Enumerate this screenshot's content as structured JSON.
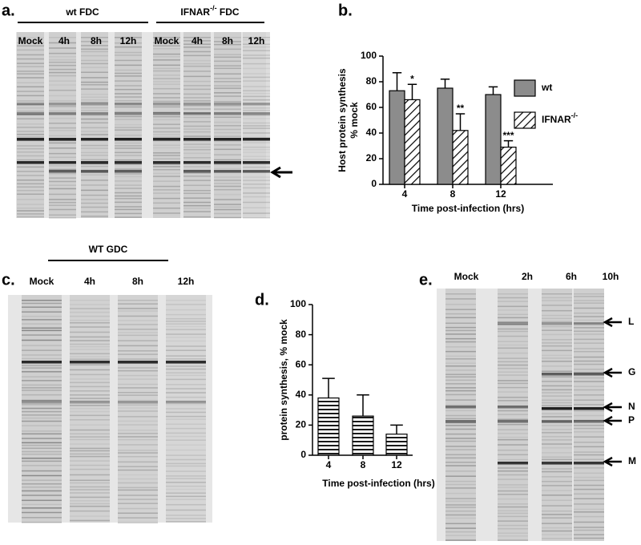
{
  "panel_labels": [
    "a.",
    "b.",
    "c.",
    "d.",
    "e."
  ],
  "gel_a": {
    "groups": [
      {
        "text": "wt FDC"
      },
      {
        "text": "IFNAR",
        "sup": "-/-",
        "suffix": " FDC"
      }
    ],
    "lanes": [
      "Mock",
      "4h",
      "8h",
      "12h",
      "Mock",
      "4h",
      "8h",
      "12h"
    ]
  },
  "gel_c": {
    "group": "WT GDC",
    "lanes": [
      "Mock",
      "4h",
      "8h",
      "12h"
    ]
  },
  "gel_e": {
    "lanes": [
      "Mock",
      "2h",
      "6h",
      "10h"
    ],
    "bands": [
      "L",
      "G",
      "N",
      "P",
      "M"
    ]
  },
  "chart_data": [
    {
      "type": "bar",
      "categories": [
        "4",
        "8",
        "12"
      ],
      "y_label": [
        "Host protein synthesis",
        "% mock"
      ],
      "x_label": "Time post-infection (hrs)",
      "ylim": [
        0,
        100
      ],
      "yticks": [
        0,
        20,
        40,
        60,
        80,
        100
      ],
      "legend": "right",
      "series": [
        {
          "name": "wt",
          "color": "#8c8c8c",
          "pattern": "solid",
          "values": [
            73,
            75,
            70
          ],
          "errors": [
            14,
            7,
            6
          ]
        },
        {
          "name": "IFNAR",
          "name_sup": "-/-",
          "color": "#000000",
          "pattern": "diagonal",
          "values": [
            66,
            42,
            29
          ],
          "errors": [
            12,
            13,
            5
          ],
          "annotations": [
            "*",
            "**",
            "***"
          ]
        }
      ]
    },
    {
      "type": "bar",
      "categories": [
        "4",
        "8",
        "12"
      ],
      "y_label": [
        "protein synthesis, % mock"
      ],
      "x_label": "Time post-infection (hrs)",
      "ylim": [
        0,
        100
      ],
      "yticks": [
        0,
        20,
        40,
        60,
        80,
        100
      ],
      "series": [
        {
          "color": "#000000",
          "pattern": "horizontal",
          "values": [
            38,
            26,
            14
          ],
          "errors": [
            13,
            14,
            6
          ]
        }
      ]
    }
  ]
}
